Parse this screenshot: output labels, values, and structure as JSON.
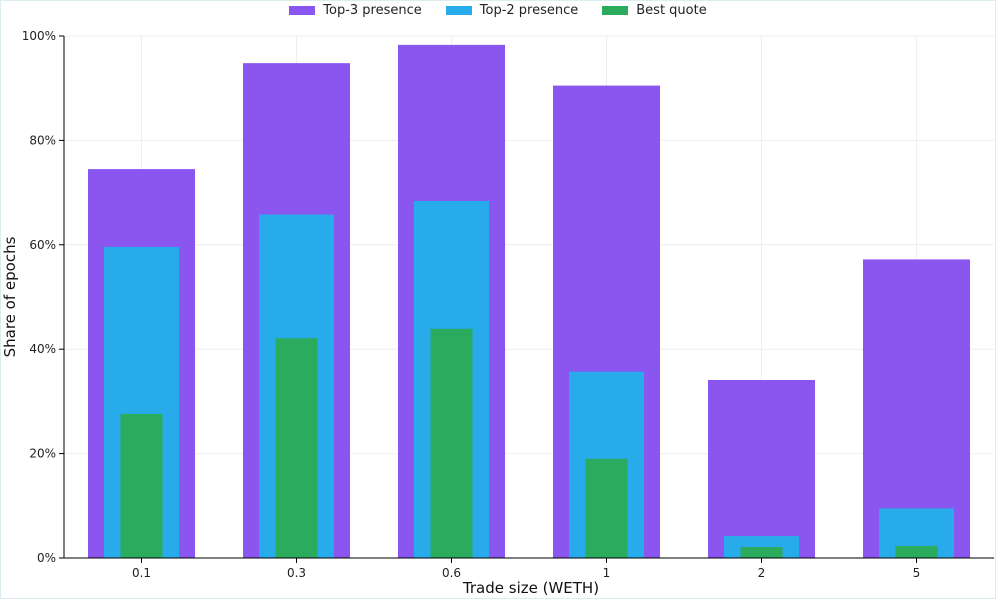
{
  "chart_data": {
    "type": "bar",
    "categories": [
      "0.1",
      "0.3",
      "0.6",
      "1",
      "2",
      "5"
    ],
    "series": [
      {
        "name": "Top-3 presence",
        "color": "#8b55f0",
        "values": [
          74.5,
          94.8,
          98.3,
          90.5,
          34.1,
          57.2
        ]
      },
      {
        "name": "Top-2 presence",
        "color": "#27abeb",
        "values": [
          59.6,
          65.8,
          68.4,
          35.7,
          4.2,
          9.5
        ]
      },
      {
        "name": "Best quote",
        "color": "#2aab5e",
        "values": [
          27.6,
          42.1,
          43.9,
          19.0,
          2.1,
          2.3
        ]
      }
    ],
    "xlabel": "Trade size (WETH)",
    "ylabel": "Share of epochs",
    "ylim": [
      0,
      100
    ],
    "yticks": [
      "0%",
      "20%",
      "40%",
      "60%",
      "80%",
      "100%"
    ],
    "ytick_values": [
      0,
      20,
      40,
      60,
      80,
      100
    ],
    "legend_position": "top-center",
    "grid": true
  }
}
